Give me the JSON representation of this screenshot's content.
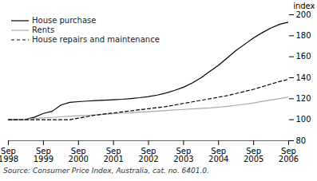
{
  "chart_data": {
    "type": "line",
    "ylabel": "index",
    "caption": "Source: Consumer Price Index, Australia, cat. no. 6401.0.",
    "categories": [
      "Sep\n1998",
      null,
      null,
      null,
      "Sep\n1999",
      null,
      null,
      null,
      "Sep\n2000",
      null,
      null,
      null,
      "Sep\n2001",
      null,
      null,
      null,
      "Sep\n2002",
      null,
      null,
      null,
      "Sep\n2003",
      null,
      null,
      null,
      "Sep\n2004",
      null,
      null,
      null,
      "Sep\n2005",
      null,
      null,
      null,
      "Sep\n2006"
    ],
    "series": [
      {
        "name": "House purchase",
        "color": "#000000",
        "line_style": "solid",
        "values": [
          100.0,
          100.2,
          100.4,
          102.5,
          106.0,
          108.0,
          114.0,
          116.5,
          117.2,
          117.8,
          118.2,
          118.6,
          119.0,
          119.5,
          120.2,
          121.0,
          122.0,
          123.5,
          125.5,
          128.0,
          131.0,
          135.0,
          140.0,
          146.0,
          152.0,
          159.0,
          166.0,
          172.0,
          178.0,
          183.0,
          187.5,
          191.0,
          193.0
        ]
      },
      {
        "name": "Rents",
        "color": "#aaaaaa",
        "line_style": "solid",
        "values": [
          100.0,
          100.3,
          100.7,
          101.2,
          101.7,
          102.2,
          102.8,
          103.3,
          103.8,
          104.2,
          104.7,
          105.2,
          105.7,
          106.2,
          106.7,
          107.2,
          107.7,
          108.2,
          108.8,
          109.3,
          109.8,
          110.3,
          110.8,
          111.3,
          112.0,
          112.8,
          113.8,
          114.8,
          116.0,
          117.5,
          118.8,
          120.2,
          121.8
        ]
      },
      {
        "name": "House repairs and maintenance",
        "color": "#000000",
        "line_style": "dashed",
        "values": [
          100.0,
          100.0,
          100.0,
          100.0,
          100.0,
          100.0,
          100.0,
          100.0,
          101.5,
          103.0,
          104.5,
          105.5,
          106.5,
          107.5,
          108.5,
          109.5,
          110.5,
          111.5,
          112.5,
          114.0,
          115.5,
          117.0,
          118.5,
          120.0,
          121.5,
          123.0,
          125.0,
          127.0,
          129.0,
          131.5,
          134.0,
          136.5,
          138.5
        ]
      }
    ],
    "ylim": [
      80,
      200
    ],
    "yticks": [
      80,
      100,
      120,
      140,
      160,
      180,
      200
    ],
    "legend": "upper left",
    "grid": false
  }
}
